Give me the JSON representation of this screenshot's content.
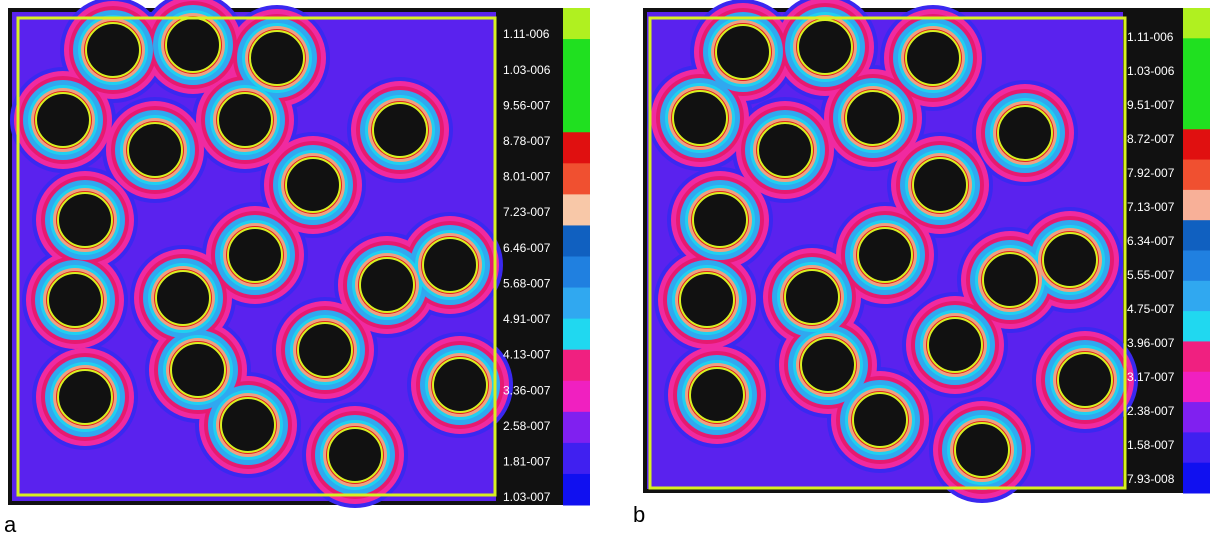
{
  "panels": [
    {
      "label": "a",
      "colorbar": {
        "labels": [
          "1.11-006",
          "1.03-006",
          "9.56-007",
          "8.78-007",
          "8.01-007",
          "7.23-007",
          "6.46-007",
          "5.68-007",
          "4.91-007",
          "4.13-007",
          "3.36-007",
          "2.58-007",
          "1.81-007",
          "1.03-007"
        ],
        "colors": [
          "#b0f020",
          "#20e020",
          "#20e020",
          "#20e020",
          "#e01010",
          "#f05030",
          "#f8c8a8",
          "#1060c0",
          "#2080e0",
          "#30a8f0",
          "#20d8f0",
          "#f02080",
          "#f020c0",
          "#8020f0",
          "#4020f0",
          "#1010f0"
        ]
      }
    },
    {
      "label": "b",
      "colorbar": {
        "labels": [
          "1.11-006",
          "1.03-006",
          "9.51-007",
          "8.72-007",
          "7.92-007",
          "7.13-007",
          "6.34-007",
          "5.55-007",
          "4.75-007",
          "3.96-007",
          "3.17-007",
          "2.38-007",
          "1.58-007",
          "7.93-008"
        ],
        "colors": [
          "#b0f020",
          "#20e020",
          "#20e020",
          "#20e020",
          "#e01010",
          "#f05030",
          "#f8b098",
          "#1060c0",
          "#2080e0",
          "#30a8f0",
          "#20d8f0",
          "#f02080",
          "#f020c0",
          "#8020f0",
          "#4020f0",
          "#1010f0"
        ]
      }
    }
  ]
}
